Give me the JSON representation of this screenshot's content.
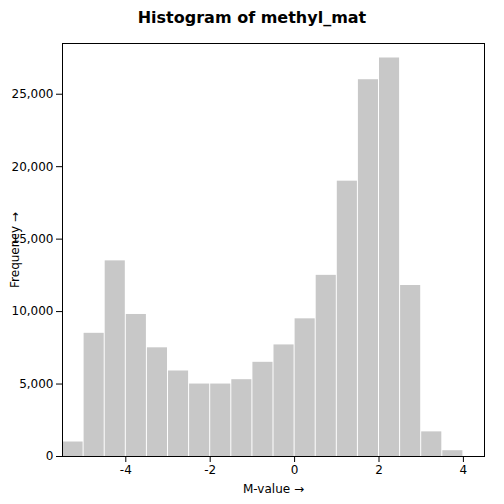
{
  "chart_data": {
    "type": "histogram",
    "title": "Histogram of methyl_mat",
    "xlabel": "M-value",
    "ylabel": "Frequency",
    "bins": [
      -5.5,
      -5.0,
      -4.5,
      -4.0,
      -3.5,
      -3.0,
      -2.5,
      -2.0,
      -1.5,
      -1.0,
      -0.5,
      0.0,
      0.5,
      1.0,
      1.5,
      2.0,
      2.5,
      3.0,
      3.5,
      4.0,
      4.5
    ],
    "values": [
      1000,
      8500,
      13500,
      9800,
      7500,
      5900,
      5000,
      5000,
      5300,
      6500,
      7700,
      9500,
      12500,
      19000,
      26000,
      27500,
      11800,
      1700,
      400,
      0
    ],
    "color": "#c8c8c8",
    "xlim": [
      -5.5,
      4.5
    ],
    "xticks": [
      -4,
      -2,
      0,
      2,
      4
    ],
    "ylim": [
      0,
      28500
    ],
    "yticks": [
      0,
      {
        "value": 5000,
        "label": "5,000"
      },
      {
        "value": 10000,
        "label": "10,000"
      },
      {
        "value": 15000,
        "label": "15,000"
      },
      {
        "value": 20000,
        "label": "20,000"
      },
      {
        "value": 25000,
        "label": "25,000"
      }
    ]
  }
}
